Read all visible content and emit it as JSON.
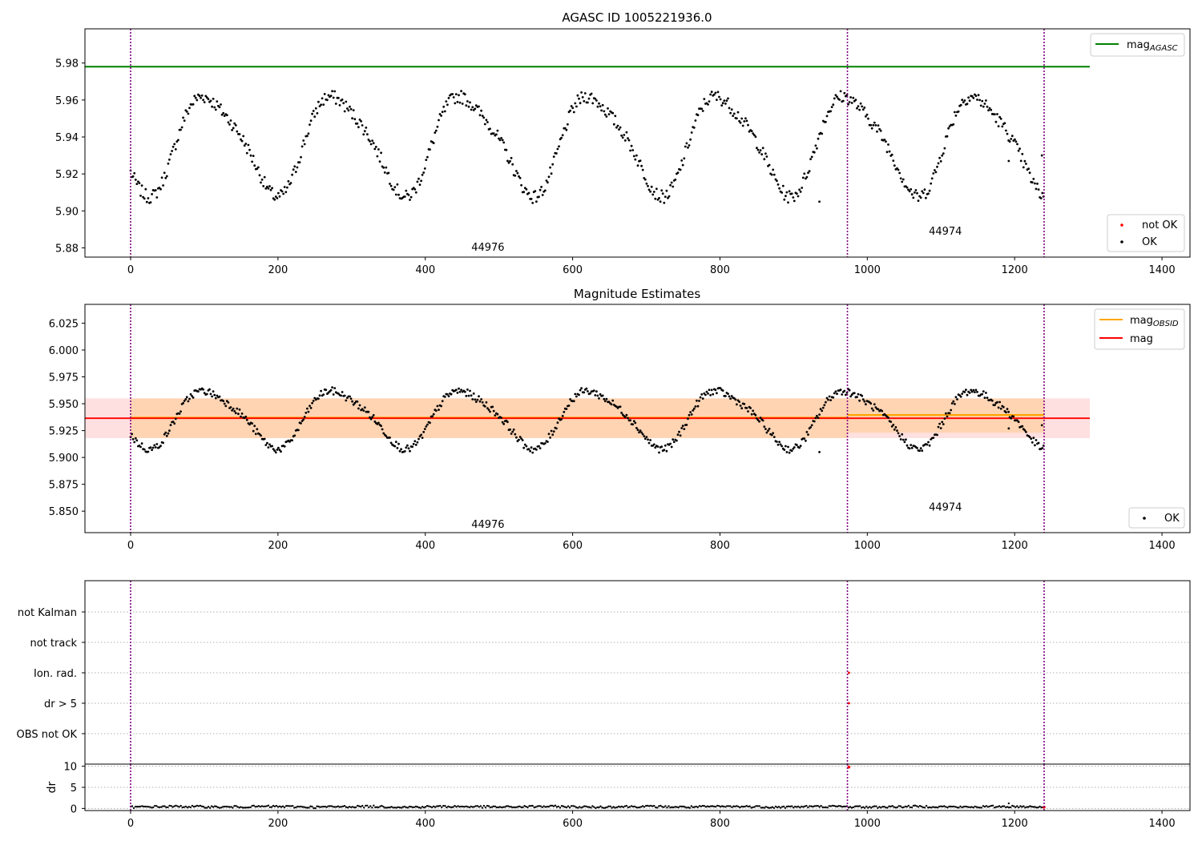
{
  "chart_data": [
    {
      "type": "scatter",
      "title": "AGASC ID 1005221936.0",
      "xlabel": "",
      "ylabel": "",
      "xlim": [
        -62,
        1438
      ],
      "ylim": [
        5.875,
        5.9985
      ],
      "xticks": [
        0,
        200,
        400,
        600,
        800,
        1000,
        1200,
        1400
      ],
      "yticks": [
        5.88,
        5.9,
        5.92,
        5.94,
        5.96,
        5.98
      ],
      "vlines": [
        0,
        973,
        1240
      ],
      "obsid_labels": [
        {
          "text": "44976",
          "x": 485,
          "y": 5.8785
        },
        {
          "text": "44974",
          "x": 1106,
          "y": 5.8872
        }
      ],
      "series": [
        {
          "name": "not OK",
          "kind": "scatter",
          "color": "#ff0000",
          "x": [],
          "y": []
        },
        {
          "name": "OK",
          "kind": "scatter",
          "color": "#000000",
          "shape": "quasi-periodic",
          "x_range": [
            0,
            1240
          ],
          "mean": 5.937,
          "amplitude": 0.026,
          "period_x": 174
        }
      ],
      "lines": [
        {
          "name": "mag_AGASC",
          "label_main": "mag",
          "label_sub": "AGASC",
          "color": "#008000",
          "x": [
            -62,
            1302
          ],
          "y": [
            5.978,
            5.978
          ]
        }
      ],
      "legends": [
        {
          "position": "top-right",
          "entries": [
            "mag_AGASC"
          ]
        },
        {
          "position": "bottom-right",
          "entries": [
            "not OK",
            "OK"
          ]
        }
      ],
      "grid": false
    },
    {
      "type": "scatter",
      "title": "Magnitude Estimates",
      "xlabel": "",
      "ylabel": "",
      "xlim": [
        -62,
        1438
      ],
      "ylim": [
        5.83,
        6.0425
      ],
      "xticks": [
        0,
        200,
        400,
        600,
        800,
        1000,
        1200,
        1400
      ],
      "yticks": [
        5.85,
        5.875,
        5.9,
        5.925,
        5.95,
        5.975,
        6.0,
        6.025
      ],
      "vlines": [
        0,
        973,
        1240
      ],
      "obsid_labels": [
        {
          "text": "44976",
          "x": 485,
          "y": 5.8345
        },
        {
          "text": "44974",
          "x": 1106,
          "y": 5.8505
        }
      ],
      "series": [
        {
          "name": "OK",
          "kind": "scatter",
          "color": "#000000",
          "shape": "quasi-periodic",
          "x_range": [
            0,
            1240
          ],
          "mean": 5.937,
          "amplitude": 0.026,
          "period_x": 174
        }
      ],
      "lines": [
        {
          "name": "mag_OBSID",
          "label_main": "mag",
          "label_sub": "OBSID",
          "color": "#ffa500",
          "segments": [
            {
              "x": [
                0,
                973
              ],
              "y": [
                5.937,
                5.937
              ],
              "band": [
                5.918,
                5.955
              ]
            },
            {
              "x": [
                973,
                1240
              ],
              "y": [
                5.9395,
                5.9395
              ],
              "band": [
                5.923,
                5.955
              ]
            }
          ]
        },
        {
          "name": "mag",
          "label_main": "mag",
          "label_sub": "",
          "color": "#ff0000",
          "x": [
            -62,
            1302
          ],
          "y": [
            5.9365,
            5.9365
          ],
          "band": [
            5.918,
            5.955
          ]
        }
      ],
      "legends": [
        {
          "position": "top-right",
          "entries": [
            "mag_OBSID",
            "mag"
          ]
        },
        {
          "position": "bottom-right",
          "entries": [
            "OK"
          ]
        }
      ],
      "grid": false
    },
    {
      "type": "scatter",
      "title": "",
      "xlabel": "",
      "ylabel": "",
      "xlim": [
        -62,
        1438
      ],
      "categories": [
        "not Kalman",
        "not track",
        "Ion. rad.",
        "dr > 5",
        "OBS not OK"
      ],
      "vlines": [
        0,
        973,
        1240
      ],
      "flag_points": [
        {
          "category": "Ion. rad.",
          "x": 975,
          "color": "#ff0000"
        },
        {
          "category": "dr > 5",
          "x": 975,
          "color": "#ff0000"
        }
      ],
      "grid": true
    },
    {
      "type": "line",
      "title": "",
      "xlabel": "",
      "ylabel": "dr",
      "xlim": [
        -62,
        1438
      ],
      "ylim": [
        -0.5,
        10.5
      ],
      "xticks": [
        0,
        200,
        400,
        600,
        800,
        1000,
        1200,
        1400
      ],
      "yticks": [
        0,
        5,
        10
      ],
      "vlines": [
        0,
        973,
        1240
      ],
      "series": [
        {
          "name": "dr",
          "kind": "scatter",
          "color": "#000000",
          "x_range": [
            0,
            1240
          ],
          "mean": 0.25
        },
        {
          "name": "dr outliers",
          "kind": "scatter",
          "color": "#ff0000",
          "x": [
            975,
            1240
          ],
          "y": [
            9.8,
            0.3
          ]
        }
      ],
      "grid": true
    }
  ]
}
